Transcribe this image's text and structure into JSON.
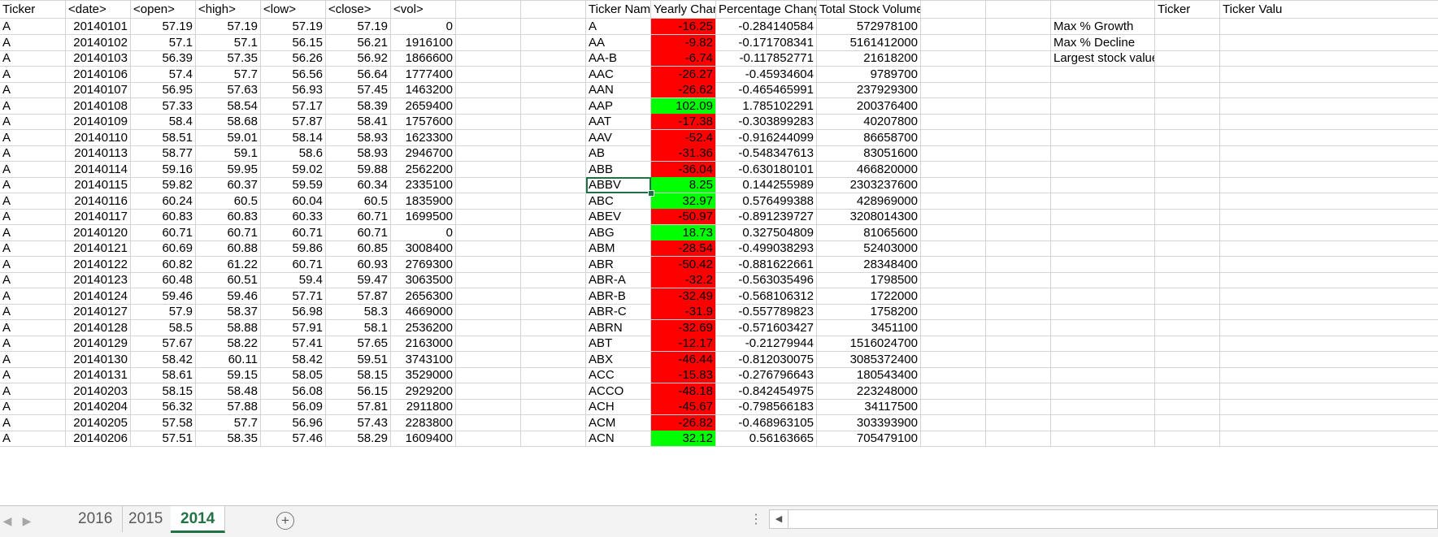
{
  "headers": {
    "ticker": "Ticker",
    "date": "<date>",
    "open": "<open>",
    "high": "<high>",
    "low": "<low>",
    "close": "<close>",
    "vol": "<vol>",
    "ticker_name": "Ticker Name",
    "yearly_change": "Yearly Chang",
    "percentage_change": "Percentage Change",
    "total_stock_volume": "Total Stock Volume",
    "ticker_value": "Ticker Valu"
  },
  "stats_labels": [
    "Max % Growth",
    "Max % Decline",
    "Largest stock value"
  ],
  "raw_rows": [
    [
      "A",
      "20140101",
      "57.19",
      "57.19",
      "57.19",
      "57.19",
      "0"
    ],
    [
      "A",
      "20140102",
      "57.1",
      "57.1",
      "56.15",
      "56.21",
      "1916100"
    ],
    [
      "A",
      "20140103",
      "56.39",
      "57.35",
      "56.26",
      "56.92",
      "1866600"
    ],
    [
      "A",
      "20140106",
      "57.4",
      "57.7",
      "56.56",
      "56.64",
      "1777400"
    ],
    [
      "A",
      "20140107",
      "56.95",
      "57.63",
      "56.93",
      "57.45",
      "1463200"
    ],
    [
      "A",
      "20140108",
      "57.33",
      "58.54",
      "57.17",
      "58.39",
      "2659400"
    ],
    [
      "A",
      "20140109",
      "58.4",
      "58.68",
      "57.87",
      "58.41",
      "1757600"
    ],
    [
      "A",
      "20140110",
      "58.51",
      "59.01",
      "58.14",
      "58.93",
      "1623300"
    ],
    [
      "A",
      "20140113",
      "58.77",
      "59.1",
      "58.6",
      "58.93",
      "2946700"
    ],
    [
      "A",
      "20140114",
      "59.16",
      "59.95",
      "59.02",
      "59.88",
      "2562200"
    ],
    [
      "A",
      "20140115",
      "59.82",
      "60.37",
      "59.59",
      "60.34",
      "2335100"
    ],
    [
      "A",
      "20140116",
      "60.24",
      "60.5",
      "60.04",
      "60.5",
      "1835900"
    ],
    [
      "A",
      "20140117",
      "60.83",
      "60.83",
      "60.33",
      "60.71",
      "1699500"
    ],
    [
      "A",
      "20140120",
      "60.71",
      "60.71",
      "60.71",
      "60.71",
      "0"
    ],
    [
      "A",
      "20140121",
      "60.69",
      "60.88",
      "59.86",
      "60.85",
      "3008400"
    ],
    [
      "A",
      "20140122",
      "60.82",
      "61.22",
      "60.71",
      "60.93",
      "2769300"
    ],
    [
      "A",
      "20140123",
      "60.48",
      "60.51",
      "59.4",
      "59.47",
      "3063500"
    ],
    [
      "A",
      "20140124",
      "59.46",
      "59.46",
      "57.71",
      "57.87",
      "2656300"
    ],
    [
      "A",
      "20140127",
      "57.9",
      "58.37",
      "56.98",
      "58.3",
      "4669000"
    ],
    [
      "A",
      "20140128",
      "58.5",
      "58.88",
      "57.91",
      "58.1",
      "2536200"
    ],
    [
      "A",
      "20140129",
      "57.67",
      "58.22",
      "57.41",
      "57.65",
      "2163000"
    ],
    [
      "A",
      "20140130",
      "58.42",
      "60.11",
      "58.42",
      "59.51",
      "3743100"
    ],
    [
      "A",
      "20140131",
      "58.61",
      "59.15",
      "58.05",
      "58.15",
      "3529000"
    ],
    [
      "A",
      "20140203",
      "58.15",
      "58.48",
      "56.08",
      "56.15",
      "2929200"
    ],
    [
      "A",
      "20140204",
      "56.32",
      "57.88",
      "56.09",
      "57.81",
      "2911800"
    ],
    [
      "A",
      "20140205",
      "57.58",
      "57.7",
      "56.96",
      "57.43",
      "2283800"
    ],
    [
      "A",
      "20140206",
      "57.51",
      "58.35",
      "57.46",
      "58.29",
      "1609400"
    ]
  ],
  "summary_rows": [
    [
      "A",
      "-16.25",
      "-0.284140584",
      "572978100"
    ],
    [
      "AA",
      "-9.82",
      "-0.171708341",
      "5161412000"
    ],
    [
      "AA-B",
      "-6.74",
      "-0.117852771",
      "21618200"
    ],
    [
      "AAC",
      "-26.27",
      "-0.45934604",
      "9789700"
    ],
    [
      "AAN",
      "-26.62",
      "-0.465465991",
      "237929300"
    ],
    [
      "AAP",
      "102.09",
      "1.785102291",
      "200376400"
    ],
    [
      "AAT",
      "-17.38",
      "-0.303899283",
      "40207800"
    ],
    [
      "AAV",
      "-52.4",
      "-0.916244099",
      "86658700"
    ],
    [
      "AB",
      "-31.36",
      "-0.548347613",
      "83051600"
    ],
    [
      "ABB",
      "-36.04",
      "-0.630180101",
      "466820000"
    ],
    [
      "ABBV",
      "8.25",
      "0.144255989",
      "2303237600"
    ],
    [
      "ABC",
      "32.97",
      "0.576499388",
      "428969000"
    ],
    [
      "ABEV",
      "-50.97",
      "-0.891239727",
      "3208014300"
    ],
    [
      "ABG",
      "18.73",
      "0.327504809",
      "81065600"
    ],
    [
      "ABM",
      "-28.54",
      "-0.499038293",
      "52403000"
    ],
    [
      "ABR",
      "-50.42",
      "-0.881622661",
      "28348400"
    ],
    [
      "ABR-A",
      "-32.2",
      "-0.563035496",
      "1798500"
    ],
    [
      "ABR-B",
      "-32.49",
      "-0.568106312",
      "1722000"
    ],
    [
      "ABR-C",
      "-31.9",
      "-0.557789823",
      "1758200"
    ],
    [
      "ABRN",
      "-32.69",
      "-0.571603427",
      "3451100"
    ],
    [
      "ABT",
      "-12.17",
      "-0.21279944",
      "1516024700"
    ],
    [
      "ABX",
      "-46.44",
      "-0.812030075",
      "3085372400"
    ],
    [
      "ACC",
      "-15.83",
      "-0.276796643",
      "180543400"
    ],
    [
      "ACCO",
      "-48.18",
      "-0.842454975",
      "223248000"
    ],
    [
      "ACH",
      "-45.67",
      "-0.798566183",
      "34117500"
    ],
    [
      "ACM",
      "-26.82",
      "-0.468963105",
      "303393900"
    ],
    [
      "ACN",
      "32.12",
      "0.56163665",
      "705479100"
    ]
  ],
  "selected_ticker": "ABBV",
  "sheet_tabs": [
    "2016",
    "2015",
    "2014"
  ],
  "active_sheet": "2014",
  "colors": {
    "negative": "#ff0000",
    "positive": "#00ff00",
    "accent": "#217346"
  }
}
